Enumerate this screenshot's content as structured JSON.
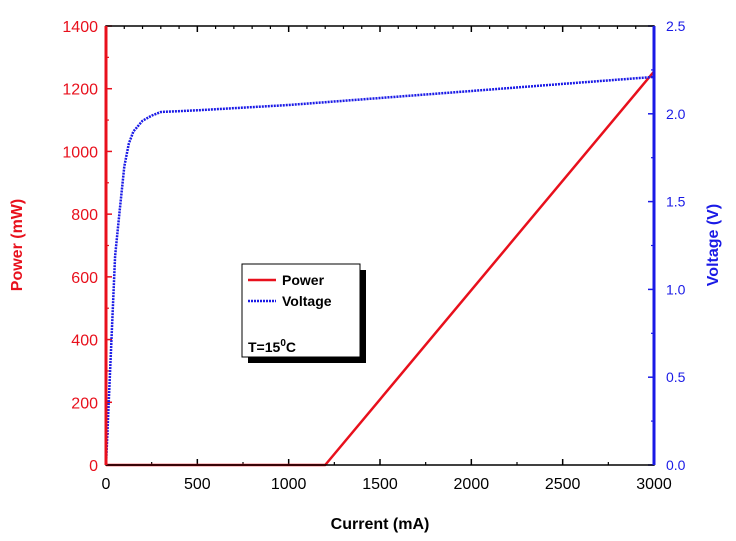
{
  "colors": {
    "power": "#e8101c",
    "voltage": "#1a1ae6",
    "frame": "#000000"
  },
  "chart_data": {
    "type": "line",
    "xlabel": "Current (mA)",
    "ylabel_left": "Power (mW)",
    "ylabel_right": "Voltage (V)",
    "xlim": [
      0,
      3000
    ],
    "ylim_left": [
      0,
      1400
    ],
    "ylim_right": [
      0,
      2.5
    ],
    "x_ticks": [
      0,
      500,
      1000,
      1500,
      2000,
      2500,
      3000
    ],
    "y_ticks_left": [
      0,
      200,
      400,
      600,
      800,
      1000,
      1200,
      1400
    ],
    "y_ticks_right": [
      "0.0",
      "0.5",
      "1.0",
      "1.5",
      "2.0",
      "2.5"
    ],
    "grid": false,
    "legend_placement": "center-left",
    "series": [
      {
        "name": "Power",
        "axis": "left",
        "x": [
          0,
          1200,
          3000
        ],
        "values": [
          0,
          0,
          1255
        ]
      },
      {
        "name": "Voltage",
        "axis": "right",
        "x": [
          0,
          25,
          50,
          75,
          100,
          125,
          150,
          175,
          200,
          250,
          300,
          500,
          1000,
          1500,
          2000,
          2500,
          3000
        ],
        "values": [
          0,
          0.6,
          1.19,
          1.45,
          1.7,
          1.83,
          1.9,
          1.93,
          1.96,
          1.99,
          2.01,
          2.02,
          2.05,
          2.09,
          2.13,
          2.17,
          2.21
        ]
      }
    ],
    "annotation": {
      "text": "T=15",
      "sup": "0",
      "suffix": "C"
    }
  }
}
